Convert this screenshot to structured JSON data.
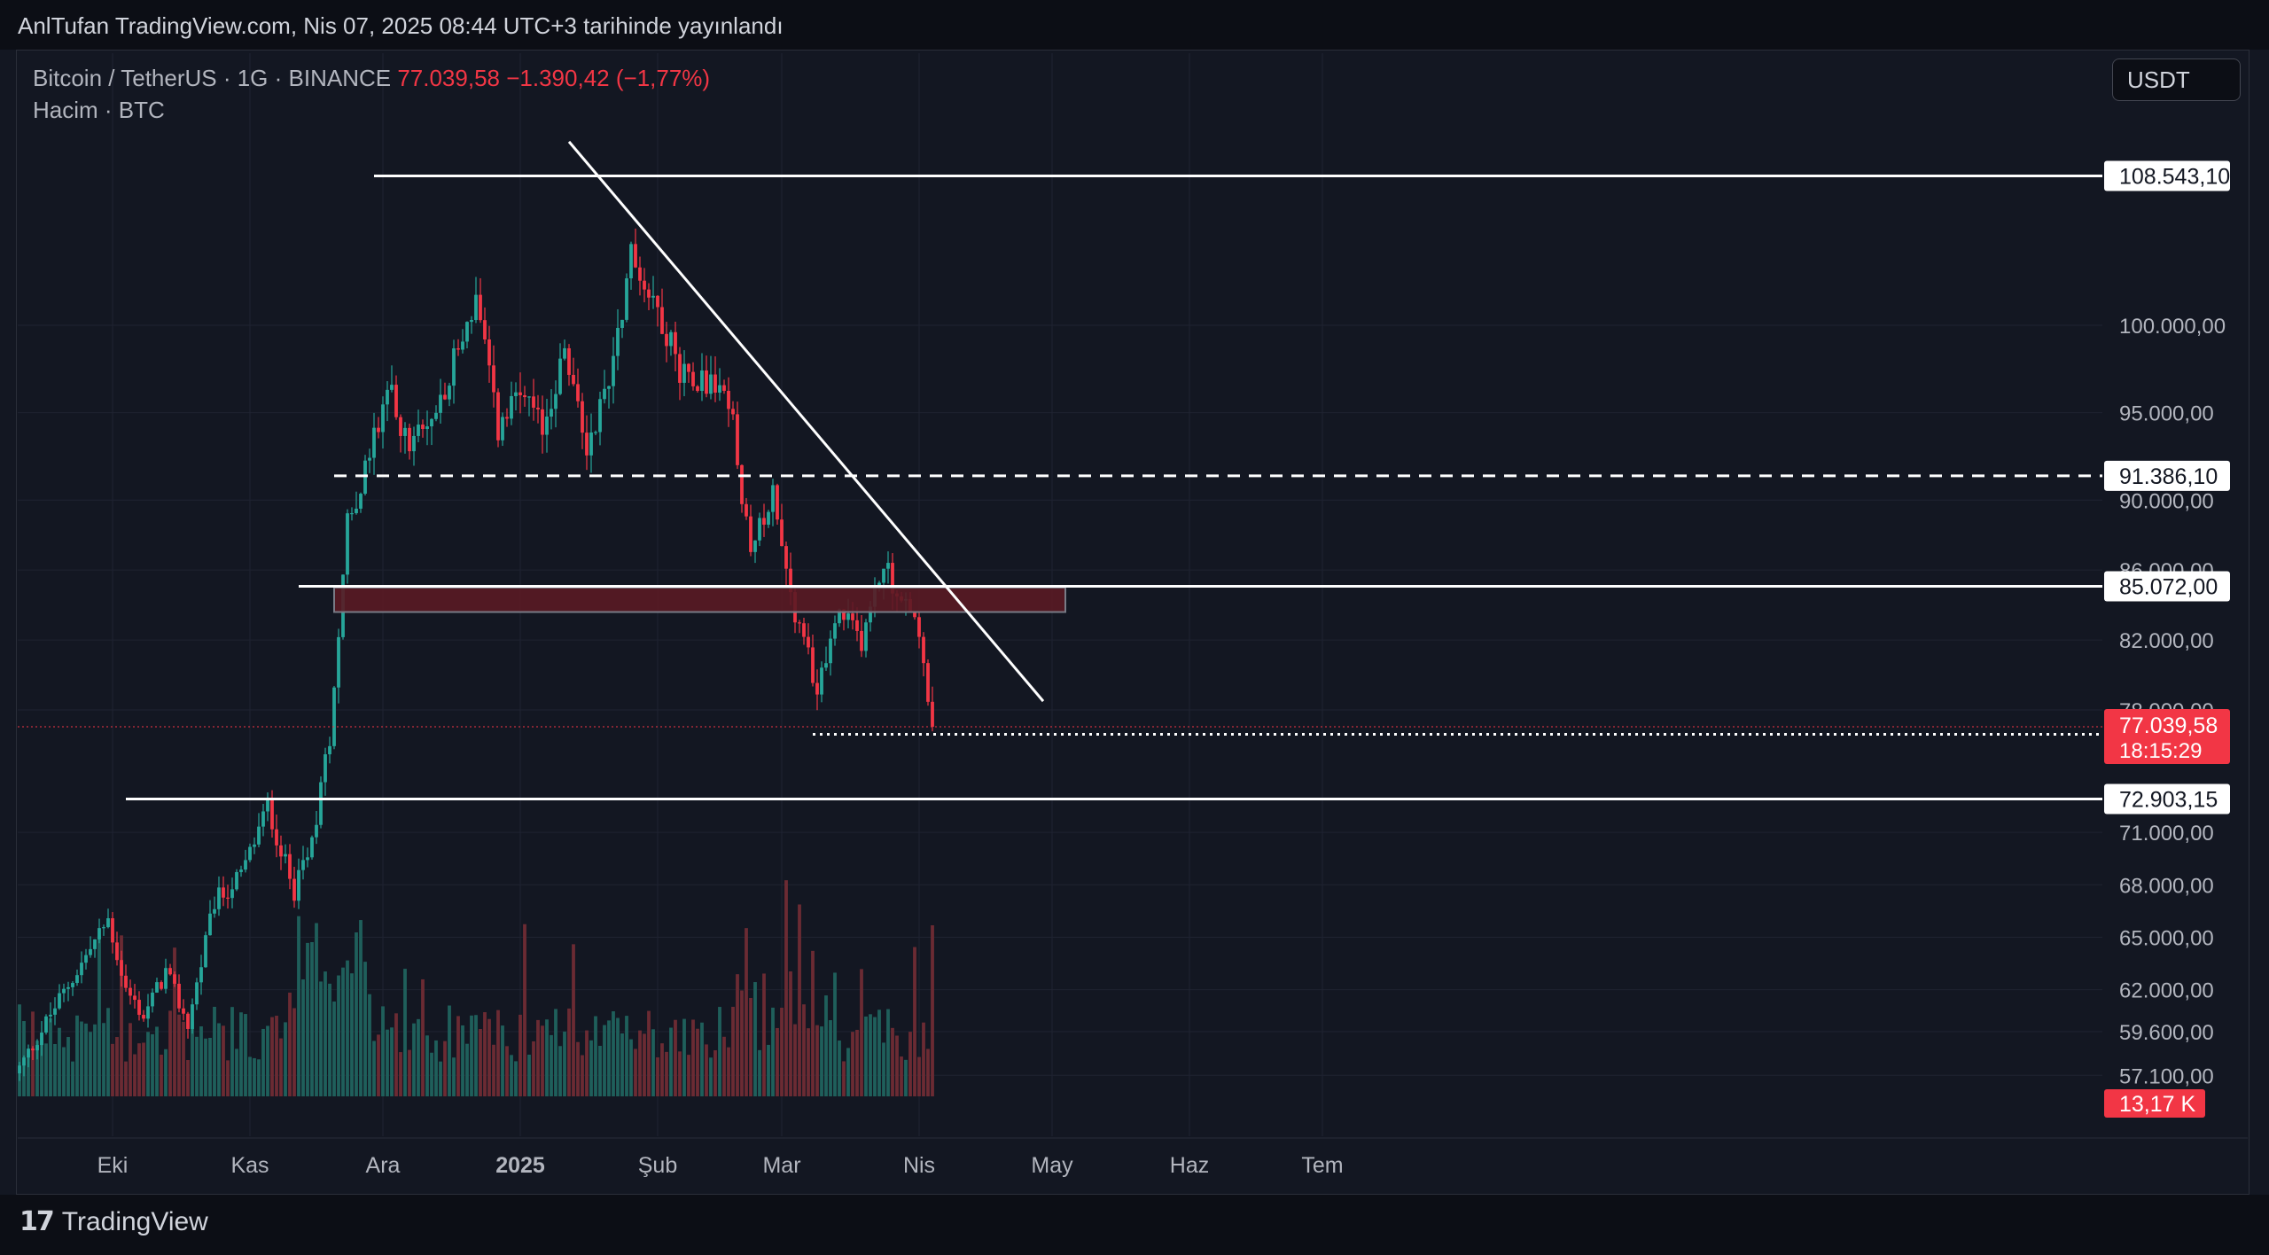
{
  "header": {
    "published": "AnlTufan TradingView.com, Nis 07, 2025 08:44 UTC+3 tarihinde yayınlandı"
  },
  "legend": {
    "symbol": "Bitcoin / TetherUS · 1G · BINANCE",
    "last": "77.039,58",
    "change": "−1.390,42 (−1,77%)",
    "volume_label": "Hacim · BTC"
  },
  "currency_button": "USDT",
  "footer": {
    "brand": "TradingView"
  },
  "colors": {
    "background": "#131722",
    "up": "#26a69a",
    "down": "#f23645",
    "zone_fill": "#5a1a24",
    "line": "#ffffff"
  },
  "chart_data": {
    "type": "candlestick",
    "symbol": "Bitcoin / TetherUS",
    "interval": "1G",
    "exchange": "BINANCE",
    "ylim": [
      56000,
      111000
    ],
    "y_ticks": [
      "100.000,00",
      "95.000,00",
      "90.000,00",
      "86.000,00",
      "82.000,00",
      "78.000,00",
      "71.000,00",
      "68.000,00",
      "65.000,00",
      "62.000,00",
      "59.600,00",
      "57.100,00"
    ],
    "x_ticks": [
      "Eki",
      "Kas",
      "Ara",
      "2025",
      "Şub",
      "Mar",
      "Nis",
      "May",
      "Haz",
      "Tem"
    ],
    "x_tick_days": [
      21,
      52,
      82,
      113,
      144,
      172,
      203,
      233,
      264,
      294
    ],
    "start_day": 0,
    "close_anchors": [
      [
        0,
        57500
      ],
      [
        8,
        61000
      ],
      [
        14,
        63500
      ],
      [
        20,
        66000
      ],
      [
        24,
        62000
      ],
      [
        28,
        60500
      ],
      [
        33,
        63000
      ],
      [
        38,
        60000
      ],
      [
        44,
        67000
      ],
      [
        50,
        68500
      ],
      [
        56,
        72500
      ],
      [
        62,
        67500
      ],
      [
        66,
        70500
      ],
      [
        70,
        76500
      ],
      [
        74,
        89000
      ],
      [
        78,
        91500
      ],
      [
        83,
        96500
      ],
      [
        88,
        93000
      ],
      [
        93,
        94500
      ],
      [
        98,
        98000
      ],
      [
        103,
        101500
      ],
      [
        108,
        94000
      ],
      [
        113,
        96000
      ],
      [
        118,
        94000
      ],
      [
        123,
        98500
      ],
      [
        128,
        93000
      ],
      [
        133,
        97000
      ],
      [
        138,
        104000
      ],
      [
        144,
        101000
      ],
      [
        149,
        97500
      ],
      [
        154,
        97000
      ],
      [
        160,
        96000
      ],
      [
        165,
        86500
      ],
      [
        170,
        91000
      ],
      [
        175,
        83000
      ],
      [
        180,
        79500
      ],
      [
        185,
        83500
      ],
      [
        190,
        82000
      ],
      [
        195,
        86500
      ],
      [
        199,
        84000
      ],
      [
        202,
        83500
      ],
      [
        205,
        78500
      ],
      [
        206,
        77040
      ]
    ],
    "candles_last": 206,
    "levels": [
      {
        "label": "108.543,10",
        "value": 108543.1,
        "style": "solid",
        "x_start_day": 80
      },
      {
        "label": "91.386,10",
        "value": 91386.1,
        "style": "dashed",
        "x_start_day": 71
      },
      {
        "label": "85.072,00",
        "value": 85072.0,
        "style": "solid",
        "x_start_day": 63
      },
      {
        "label": "72.903,15",
        "value": 72903.15,
        "style": "solid",
        "x_start_day": 24
      },
      {
        "label": "76.606,00",
        "value": 76606.0,
        "style": "dotted",
        "x_start_day": 179
      }
    ],
    "last_price": {
      "label": "77.039,58",
      "countdown": "18:15:29",
      "value": 77039.58
    },
    "zone": {
      "from": 83600,
      "to": 85000,
      "start_day": 71,
      "end_day": 236
    },
    "trendline": {
      "from": [
        124,
        110500
      ],
      "to": [
        231,
        78500
      ]
    },
    "volume": {
      "last_label": "13,17 K"
    }
  }
}
